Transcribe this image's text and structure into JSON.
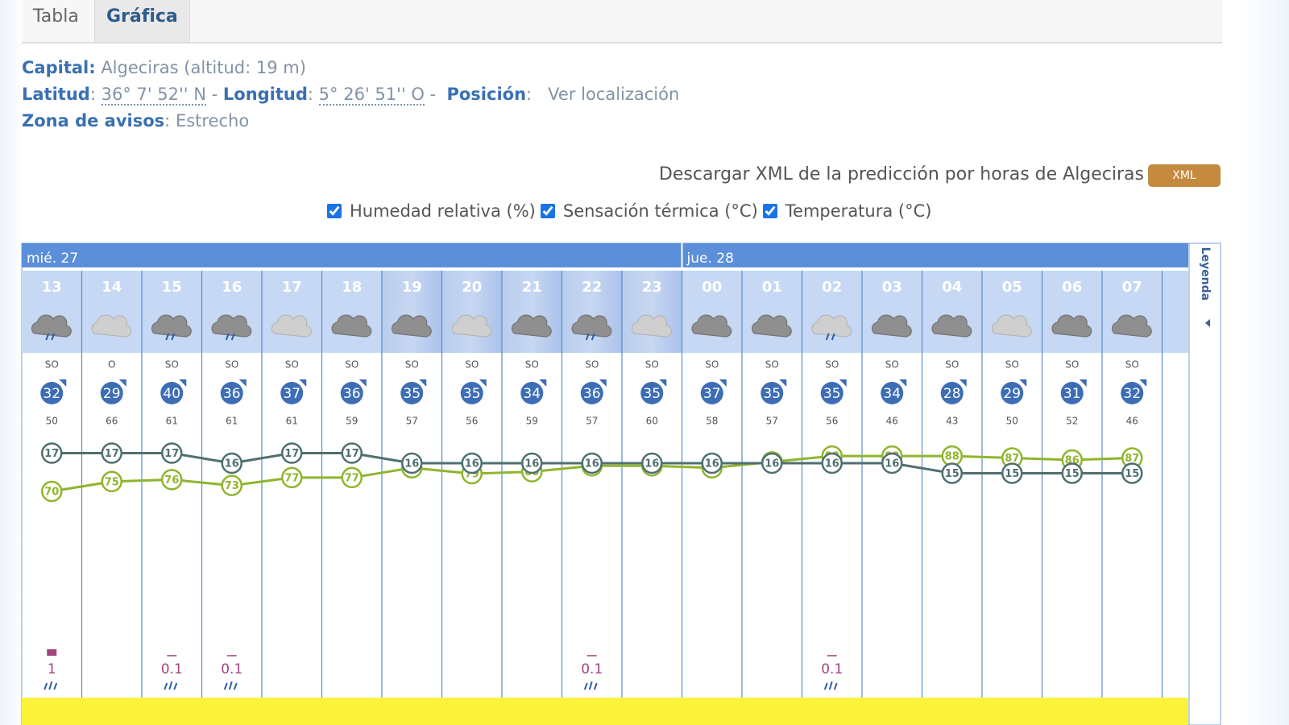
{
  "tabs": [
    "Tabla",
    "Gráfica"
  ],
  "info": {
    "capital_label": "Capital:",
    "capital": "Algeciras (altitud: 19 m)",
    "lat_label": "Latitud",
    "lat": "36° 7' 52'' N",
    "separator": "-",
    "lon_label": "Longitud",
    "lon": "5° 26' 51'' O",
    "pos_label": "Posición",
    "pos_link": "Ver localización",
    "zone_label": "Zona de avisos",
    "zone": "Estrecho"
  },
  "download": {
    "text": "Descargar XML de la predicción por horas de Algeciras",
    "button": "XML"
  },
  "toggles": [
    "Humedad relativa (%)",
    "Sensación térmica (°C)",
    "Temperatura (°C)"
  ],
  "legend_tab": "Leyenda",
  "days": [
    {
      "label": "mié. 27",
      "hours": [
        {
          "hour": "13",
          "wind_dir": "SO",
          "wind": 32,
          "gust": 50,
          "temp": 17,
          "humidity": 70,
          "precip": 1
        },
        {
          "hour": "14",
          "wind_dir": "O",
          "wind": 29,
          "gust": 66,
          "temp": 17,
          "humidity": 75
        },
        {
          "hour": "15",
          "wind_dir": "SO",
          "wind": 40,
          "gust": 61,
          "temp": 17,
          "humidity": 76,
          "precip": 0.1
        },
        {
          "hour": "16",
          "wind_dir": "SO",
          "wind": 36,
          "gust": 61,
          "temp": 16,
          "humidity": 73,
          "precip": 0.1
        },
        {
          "hour": "17",
          "wind_dir": "SO",
          "wind": 37,
          "gust": 61,
          "temp": 17,
          "humidity": 77
        },
        {
          "hour": "18",
          "wind_dir": "SO",
          "wind": 36,
          "gust": 59,
          "temp": 17,
          "humidity": 77
        },
        {
          "hour": "19",
          "wind_dir": "SO",
          "wind": 35,
          "gust": 57,
          "temp": 16,
          "humidity": 82
        },
        {
          "hour": "20",
          "wind_dir": "SO",
          "wind": 35,
          "gust": 56,
          "temp": 16,
          "humidity": 79
        },
        {
          "hour": "21",
          "wind_dir": "SO",
          "wind": 34,
          "gust": 59,
          "temp": 16,
          "humidity": 80
        },
        {
          "hour": "22",
          "wind_dir": "SO",
          "wind": 36,
          "gust": 57,
          "temp": 16,
          "humidity": 83,
          "precip": 0.1
        },
        {
          "hour": "23",
          "wind_dir": "SO",
          "wind": 35,
          "gust": 60,
          "temp": 16,
          "humidity": 83
        }
      ]
    },
    {
      "label": "jue. 28",
      "hours": [
        {
          "hour": "00",
          "wind_dir": "SO",
          "wind": 37,
          "gust": 58,
          "temp": 16,
          "humidity": 82
        },
        {
          "hour": "01",
          "wind_dir": "SO",
          "wind": 35,
          "gust": 57,
          "temp": 16,
          "humidity": 85
        },
        {
          "hour": "02",
          "wind_dir": "SO",
          "wind": 35,
          "gust": 56,
          "temp": 16,
          "humidity": 88,
          "precip": 0.1
        },
        {
          "hour": "03",
          "wind_dir": "SO",
          "wind": 34,
          "gust": 46,
          "temp": 16,
          "humidity": 88
        },
        {
          "hour": "04",
          "wind_dir": "SO",
          "wind": 28,
          "gust": 43,
          "temp": 15,
          "humidity": 88
        },
        {
          "hour": "05",
          "wind_dir": "SO",
          "wind": 29,
          "gust": 50,
          "temp": 15,
          "humidity": 87
        },
        {
          "hour": "06",
          "wind_dir": "SO",
          "wind": 31,
          "gust": 52,
          "temp": 15,
          "humidity": 86
        },
        {
          "hour": "07",
          "wind_dir": "SO",
          "wind": 32,
          "gust": 46,
          "temp": 15,
          "humidity": 87
        }
      ]
    }
  ]
}
